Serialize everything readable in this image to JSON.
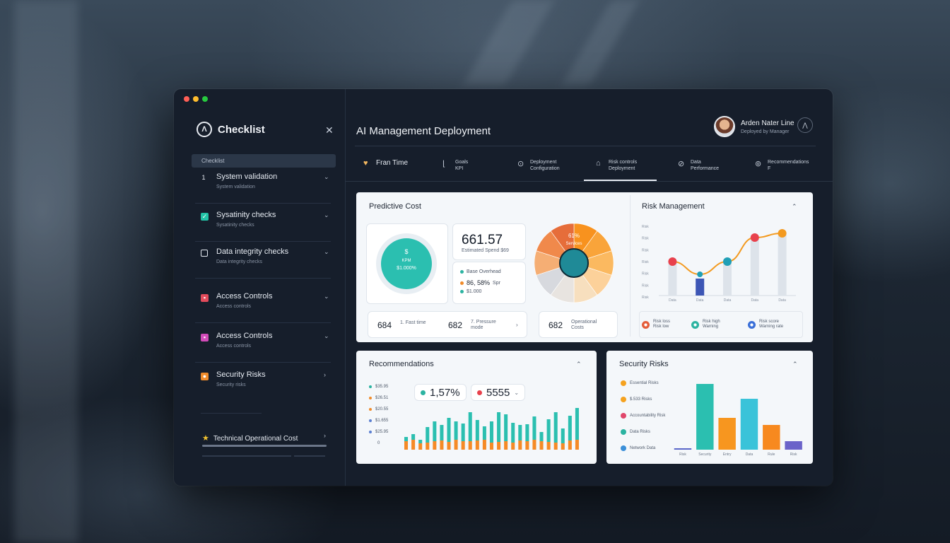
{
  "window": {
    "title": "AI Management Deployment"
  },
  "sidebar": {
    "title": "Checklist",
    "search_label": "Checklist",
    "items": [
      {
        "label": "System validation",
        "sub": "System validation",
        "icon": "step-icon",
        "color": "#e6ebf2"
      },
      {
        "label": "Sysatinity checks",
        "sub": "Sysatinity checks",
        "icon": "check-icon",
        "color": "#22c3a6"
      },
      {
        "label": "Data integrity checks",
        "sub": "Data integrity checks",
        "icon": "square-icon",
        "color": "#e6ebf2"
      },
      {
        "label": "Access Controls",
        "sub": "Access controls",
        "icon": "lock-icon",
        "color": "#e24b5b"
      },
      {
        "label": "Access Controls",
        "sub": "Access controls",
        "icon": "key-icon",
        "color": "#d14bb8"
      },
      {
        "label": "Security Risks",
        "sub": "Security risks",
        "icon": "shield-icon",
        "color": "#f08b2a"
      }
    ],
    "bottom_item": "Technical Operational Cost",
    "bottom_progress": 1.0
  },
  "user": {
    "name": "Arden Nater Line",
    "role": "Deployed by Manager"
  },
  "tabs": [
    {
      "label": "Fran Time"
    },
    {
      "label": "Goals\nKPI"
    },
    {
      "label": "Deployment\nConfiguration"
    },
    {
      "label": "Risk controls\nDeployment"
    },
    {
      "label": "Data\nPerformance"
    },
    {
      "label": "Recommendations\nF"
    }
  ],
  "cost_card": {
    "title": "Predictive Cost",
    "donut_value": "$",
    "donut_sub1": "KPM",
    "donut_sub2": "$1.000%",
    "kpi_value": "661.57",
    "kpi_sub": "Estimated Spend $69",
    "rows": [
      {
        "text": "Base Overhead",
        "value": "",
        "color": "#2bb3a1"
      },
      {
        "text": "86, 58%",
        "value": "Spr",
        "color": "#f08b2a"
      },
      {
        "text": "$1.000",
        "value": "",
        "color": "#2bb3a1"
      }
    ],
    "pie_label": "61%",
    "pie_sub": "Services",
    "pie_colors": [
      "#f8921e",
      "#f9a43a",
      "#fbb960",
      "#fcd19a",
      "#f7dfbe",
      "#e8e4e0",
      "#d7d9de",
      "#f5ae74",
      "#f0894b",
      "#e66d3a"
    ],
    "strip": [
      {
        "num": "684",
        "label": "1. Fast time"
      },
      {
        "num": "682",
        "label": "7. Pressure\nmode"
      },
      {
        "num": "682",
        "label": "Operational\nCosts"
      }
    ]
  },
  "risk_card": {
    "title": "Risk Management",
    "y_ticks": [
      "Risk",
      "Risk",
      "Risk",
      "Risk",
      "Risk",
      "Risk",
      "Risk"
    ],
    "x_ticks": [
      "Data",
      "Data",
      "Data",
      "Data",
      "Data"
    ],
    "chart_data": {
      "type": "line",
      "categories": [
        "Data",
        "Data",
        "Data",
        "Data",
        "Data"
      ],
      "series": [
        {
          "values": [
            48,
            30,
            48,
            82,
            88
          ]
        }
      ],
      "bars": [
        48,
        24,
        48,
        80,
        88
      ],
      "ylim": [
        0,
        100
      ]
    },
    "point_colors": [
      "#e8414c",
      "#1f9fb6",
      "#1f9fb6",
      "#e8414c",
      "#f39a1f"
    ],
    "legend": [
      {
        "label": "Risk loss\nRisk low",
        "color": "#e45d3a"
      },
      {
        "label": "Risk high\nWarning",
        "color": "#2bb3a1"
      },
      {
        "label": "Risk score\nWarning rate",
        "color": "#3a6fd8"
      }
    ]
  },
  "recommend_card": {
    "title": "Recommendations",
    "legend": [
      {
        "label": "$35.95",
        "color": "#2bb3a1"
      },
      {
        "label": "$26.51",
        "color": "#f08b2a"
      },
      {
        "label": "$20.55",
        "color": "#f08b2a"
      },
      {
        "label": "$1.655",
        "color": "#5a7fd0"
      },
      {
        "label": "$25.95",
        "color": "#5a7fd0"
      },
      {
        "label": "0",
        "color": ""
      }
    ],
    "pill1": {
      "text": "1,57%",
      "color": "#2bb3a1"
    },
    "pill2": {
      "text": "5555",
      "color": "#e8414c"
    },
    "chart_data": {
      "type": "bar",
      "series": [
        {
          "name": "",
          "values": [
            18,
            22,
            14,
            32,
            40,
            35,
            45,
            40,
            37,
            53,
            42,
            33,
            40,
            53,
            50,
            38,
            35,
            36,
            47,
            25,
            43,
            53,
            30,
            48,
            59
          ]
        },
        {
          "name": "",
          "values": [
            12,
            14,
            9,
            10,
            12,
            13,
            11,
            14,
            12,
            12,
            13,
            14,
            10,
            11,
            12,
            10,
            13,
            12,
            14,
            12,
            11,
            10,
            9,
            13,
            14
          ]
        }
      ],
      "ylim": [
        0,
        70
      ]
    }
  },
  "security_card": {
    "title": "Security Risks",
    "legend": [
      {
        "label": "Essential Risks",
        "color": "#f5a21f"
      },
      {
        "label": "$.533 Risks",
        "color": "#f5a21f"
      },
      {
        "label": "Accountability Risk",
        "color": "#e0466b"
      },
      {
        "label": "Data Risks",
        "color": "#2bb3a1"
      },
      {
        "label": "Network Data",
        "color": "#3a8fd8"
      }
    ],
    "x_ticks": [
      "Risk",
      "Security",
      "Entry",
      "Data",
      "Rule",
      "Risk"
    ],
    "chart_data": {
      "type": "bar",
      "categories": [
        "Risk",
        "Security",
        "Entry",
        "Data",
        "Rule",
        "Risk"
      ],
      "values": [
        2,
        93,
        45,
        72,
        35,
        12
      ],
      "colors": [
        "#5a67c9",
        "#2bbfb0",
        "#f7961f",
        "#3ac3d9",
        "#f7891f",
        "#6b63c9"
      ],
      "ylim": [
        0,
        100
      ]
    }
  }
}
